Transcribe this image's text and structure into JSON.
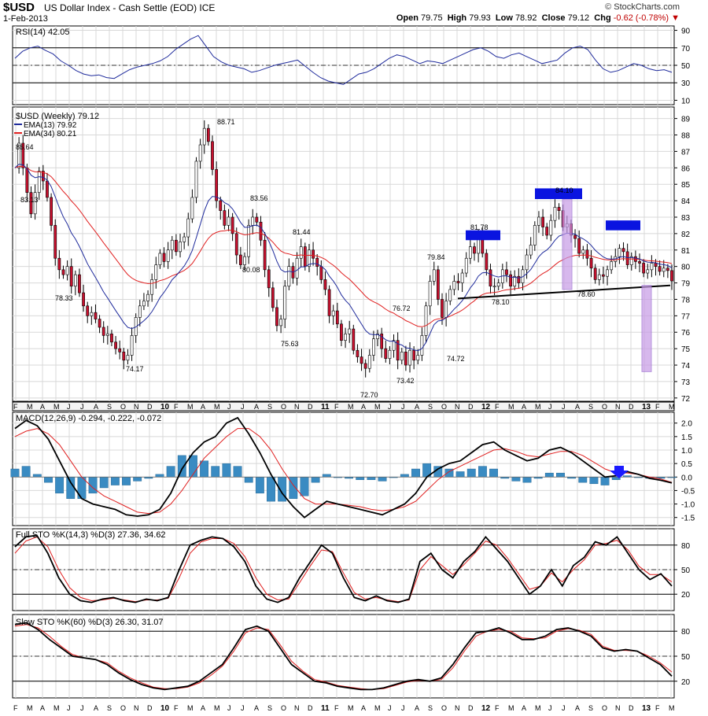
{
  "header": {
    "ticker": "$USD",
    "name": "US Dollar Index - Cash Settle (EOD)",
    "exchange": "ICE",
    "date": "1-Feb-2013",
    "brand": "© StockCharts.com",
    "open_label": "Open",
    "open": "79.75",
    "high_label": "High",
    "high": "79.93",
    "low_label": "Low",
    "low": "78.92",
    "close_label": "Close",
    "close": "79.12",
    "chg_label": "Chg",
    "chg": "-0.62 (-0.78%)",
    "down_arrow": "▼"
  },
  "colors": {
    "up_candle": "#ffffff",
    "down_candle": "#c8102e",
    "ema13": "#1f2b9c",
    "ema34": "#e01f1f",
    "macd": "#000000",
    "signal": "#e01f1f",
    "hist": "#3a8bc2",
    "box": "#0a14e0",
    "band": "#c79be6"
  },
  "chart_data": [
    {
      "type": "line",
      "title": "RSI(14) 42.05",
      "series": [
        {
          "name": "RSI(14)",
          "values": [
            58,
            66,
            70,
            72,
            67,
            63,
            55,
            50,
            44,
            40,
            38,
            39,
            36,
            35,
            40,
            45,
            48,
            50,
            52,
            55,
            60,
            68,
            74,
            80,
            84,
            72,
            60,
            54,
            50,
            48,
            46,
            42,
            44,
            47,
            50,
            52,
            54,
            56,
            49,
            42,
            36,
            32,
            30,
            28,
            34,
            40,
            42,
            46,
            52,
            58,
            62,
            60,
            56,
            52,
            55,
            54,
            52,
            56,
            60,
            64,
            68,
            70,
            66,
            60,
            58,
            62,
            64,
            60,
            56,
            52,
            54,
            56,
            64,
            70,
            72,
            68,
            56,
            46,
            42,
            44,
            48,
            52,
            50,
            46,
            44,
            45,
            42
          ]
        }
      ],
      "yticks": [
        10,
        30,
        50,
        70,
        90
      ],
      "ylim": [
        5,
        95
      ]
    },
    {
      "type": "candlestick",
      "title": "$USD (Weekly) 79.12",
      "legend": [
        "EMA(13) 79.92",
        "EMA(34) 80.21"
      ],
      "x_labels": [
        "F",
        "M",
        "A",
        "M",
        "J",
        "J",
        "A",
        "S",
        "O",
        "N",
        "D",
        "10",
        "F",
        "M",
        "A",
        "M",
        "J",
        "J",
        "A",
        "S",
        "O",
        "N",
        "D",
        "11",
        "F",
        "M",
        "A",
        "M",
        "J",
        "J",
        "A",
        "S",
        "O",
        "N",
        "D",
        "12",
        "F",
        "M",
        "A",
        "M",
        "J",
        "J",
        "A",
        "S",
        "O",
        "N",
        "D",
        "13",
        "F",
        "M"
      ],
      "close": [
        86.0,
        87.5,
        86.0,
        84.5,
        83.2,
        84.5,
        85.8,
        85.2,
        84.2,
        82.5,
        80.5,
        79.8,
        79.5,
        80.0,
        78.8,
        79.5,
        78.4,
        77.6,
        77.0,
        77.2,
        76.8,
        76.3,
        75.8,
        75.9,
        75.4,
        75.0,
        74.8,
        74.3,
        74.6,
        75.8,
        76.9,
        77.6,
        77.9,
        78.3,
        79.2,
        80.1,
        80.8,
        80.3,
        81.0,
        81.6,
        80.9,
        81.5,
        81.8,
        82.9,
        84.2,
        86.4,
        87.4,
        88.4,
        87.6,
        85.9,
        84.0,
        83.4,
        82.5,
        83.0,
        82.0,
        80.7,
        80.1,
        80.6,
        82.5,
        83.0,
        82.7,
        81.6,
        79.8,
        78.7,
        77.5,
        76.4,
        76.8,
        78.8,
        80.0,
        79.3,
        80.5,
        81.2,
        80.0,
        81.0,
        80.5,
        80.0,
        79.2,
        78.6,
        77.0,
        77.3,
        76.5,
        75.5,
        75.9,
        76.2,
        74.9,
        74.5,
        74.1,
        73.8,
        74.6,
        75.6,
        75.9,
        75.0,
        74.4,
        74.9,
        75.5,
        74.3,
        74.8,
        74.0,
        74.9,
        74.3,
        74.6,
        75.8,
        77.6,
        79.1,
        79.8,
        78.0,
        76.9,
        77.9,
        78.6,
        79.1,
        79.0,
        79.6,
        80.5,
        81.2,
        80.8,
        81.9,
        80.8,
        79.8,
        78.8,
        78.8,
        79.0,
        79.8,
        79.5,
        78.8,
        79.4,
        79.0,
        79.8,
        80.7,
        81.3,
        82.5,
        83.0,
        82.4,
        81.9,
        82.8,
        83.6,
        83.4,
        82.4,
        82.6,
        81.9,
        81.7,
        80.8,
        81.0,
        80.5,
        79.9,
        79.2,
        79.5,
        79.4,
        79.8,
        80.3,
        80.6,
        81.1,
        80.9,
        80.1,
        80.6,
        80.3,
        80.2,
        79.6,
        79.8,
        80.2,
        80.0,
        79.7,
        79.9,
        79.75,
        79.12
      ],
      "labels": [
        {
          "text": "86.64",
          "value": 86.64
        },
        {
          "text": "83.13",
          "value": 83.13
        },
        {
          "text": "78.33",
          "value": 78.33
        },
        {
          "text": "74.17",
          "value": 74.17
        },
        {
          "text": "88.71",
          "value": 88.71
        },
        {
          "text": "83.56",
          "value": 83.56
        },
        {
          "text": "80.08",
          "value": 80.08
        },
        {
          "text": "81.44",
          "value": 81.44
        },
        {
          "text": "75.63",
          "value": 75.63
        },
        {
          "text": "72.70",
          "value": 72.7
        },
        {
          "text": "76.72",
          "value": 76.72
        },
        {
          "text": "73.42",
          "value": 73.42
        },
        {
          "text": "79.84",
          "value": 79.84
        },
        {
          "text": "74.72",
          "value": 74.72
        },
        {
          "text": "81.78",
          "value": 81.78
        },
        {
          "text": "78.10",
          "value": 78.1
        },
        {
          "text": "84.10",
          "value": 84.1
        },
        {
          "text": "78.60",
          "value": 78.6
        }
      ],
      "yticks": [
        72,
        73,
        74,
        75,
        76,
        77,
        78,
        79,
        80,
        81,
        82,
        83,
        84,
        85,
        86,
        87,
        88,
        89
      ],
      "ylim": [
        71.8,
        89.7
      ]
    },
    {
      "type": "line",
      "title": "MACD(12,26,9) -0.294, -0.222, -0.072",
      "series": [
        {
          "name": "MACD(12,26,9)",
          "values": [
            1.8,
            2.1,
            1.9,
            1.4,
            0.6,
            -0.2,
            -0.8,
            -1.0,
            -1.1,
            -1.2,
            -1.4,
            -1.45,
            -1.4,
            -1.2,
            -0.6,
            0.3,
            0.9,
            1.3,
            1.5,
            2.0,
            2.2,
            1.6,
            0.9,
            0.1,
            -0.6,
            -1.1,
            -1.5,
            -1.2,
            -0.9,
            -1.0,
            -1.1,
            -1.2,
            -1.3,
            -1.4,
            -1.2,
            -1.0,
            -0.6,
            0.0,
            0.3,
            0.5,
            0.6,
            0.9,
            1.2,
            1.3,
            1.0,
            0.8,
            0.6,
            0.7,
            1.0,
            1.1,
            0.9,
            0.6,
            0.3,
            0.0,
            0.05,
            0.2,
            0.1,
            -0.05,
            -0.12,
            -0.22
          ]
        },
        {
          "name": "signal",
          "values": [
            1.5,
            1.7,
            1.8,
            1.6,
            1.2,
            0.6,
            0.0,
            -0.4,
            -0.7,
            -0.9,
            -1.1,
            -1.3,
            -1.35,
            -1.3,
            -1.0,
            -0.5,
            0.1,
            0.7,
            1.1,
            1.5,
            1.8,
            1.8,
            1.5,
            1.0,
            0.3,
            -0.3,
            -0.8,
            -1.0,
            -1.0,
            -1.0,
            -1.05,
            -1.1,
            -1.2,
            -1.25,
            -1.2,
            -1.1,
            -0.9,
            -0.5,
            -0.1,
            0.2,
            0.4,
            0.6,
            0.8,
            1.0,
            1.05,
            0.95,
            0.8,
            0.75,
            0.85,
            0.95,
            0.95,
            0.8,
            0.55,
            0.3,
            0.15,
            0.15,
            0.1,
            0.0,
            -0.07,
            -0.2
          ]
        },
        {
          "name": "histogram",
          "values": [
            0.3,
            0.4,
            0.1,
            -0.2,
            -0.6,
            -0.8,
            -0.8,
            -0.6,
            -0.4,
            -0.3,
            -0.3,
            -0.15,
            -0.05,
            0.1,
            0.4,
            0.8,
            0.8,
            0.6,
            0.4,
            0.5,
            0.4,
            -0.2,
            -0.6,
            -0.9,
            -0.9,
            -0.8,
            -0.7,
            -0.2,
            0.1,
            0.0,
            -0.05,
            -0.1,
            -0.1,
            -0.15,
            0.0,
            0.1,
            0.3,
            0.5,
            0.4,
            0.3,
            0.2,
            0.3,
            0.4,
            0.3,
            -0.05,
            -0.15,
            -0.2,
            -0.05,
            0.15,
            0.15,
            -0.05,
            -0.2,
            -0.25,
            -0.3,
            -0.1,
            0.05,
            0.0,
            -0.05,
            -0.05,
            -0.02
          ]
        }
      ],
      "yticks": [
        2.0,
        1.5,
        1.0,
        0.5,
        0.0,
        -0.5,
        -1.0,
        -1.5
      ],
      "ylim": [
        -1.8,
        2.4
      ]
    },
    {
      "type": "line",
      "title": "Full STO %K(14,3) %D(3) 27.36, 34.62",
      "series": [
        {
          "name": "%K(14,3)",
          "values": [
            78,
            90,
            92,
            70,
            40,
            20,
            12,
            10,
            14,
            16,
            12,
            10,
            14,
            12,
            16,
            50,
            80,
            86,
            90,
            88,
            78,
            60,
            30,
            14,
            10,
            16,
            40,
            60,
            80,
            70,
            40,
            16,
            12,
            18,
            12,
            10,
            14,
            60,
            70,
            50,
            40,
            60,
            72,
            90,
            75,
            60,
            40,
            20,
            30,
            50,
            30,
            55,
            65,
            84,
            80,
            90,
            70,
            50,
            38,
            45,
            30
          ]
        },
        {
          "name": "%D(3)",
          "values": [
            70,
            85,
            90,
            78,
            50,
            28,
            16,
            12,
            13,
            15,
            13,
            11,
            13,
            13,
            15,
            40,
            70,
            84,
            88,
            88,
            82,
            66,
            40,
            20,
            13,
            14,
            34,
            55,
            74,
            72,
            46,
            22,
            14,
            16,
            13,
            11,
            13,
            50,
            66,
            55,
            44,
            56,
            70,
            85,
            80,
            64,
            45,
            26,
            30,
            46,
            35,
            50,
            62,
            80,
            82,
            86,
            74,
            54,
            44,
            44,
            35
          ]
        }
      ],
      "yticks": [
        20,
        50,
        80
      ],
      "ylim": [
        0,
        100
      ]
    },
    {
      "type": "line",
      "title": "Slow STO %K(60) %D(3) 26.30, 31.07",
      "series": [
        {
          "name": "%K(60)",
          "values": [
            88,
            90,
            82,
            70,
            60,
            50,
            48,
            46,
            40,
            30,
            22,
            16,
            12,
            10,
            12,
            14,
            20,
            30,
            40,
            60,
            82,
            86,
            80,
            60,
            40,
            30,
            20,
            18,
            14,
            12,
            10,
            10,
            12,
            16,
            20,
            22,
            20,
            24,
            40,
            60,
            78,
            80,
            84,
            78,
            70,
            70,
            74,
            82,
            84,
            80,
            74,
            60,
            56,
            58,
            56,
            48,
            40,
            26
          ]
        },
        {
          "name": "%D(3)",
          "values": [
            86,
            88,
            84,
            74,
            62,
            52,
            48,
            46,
            42,
            32,
            24,
            18,
            13,
            11,
            11,
            13,
            18,
            27,
            38,
            56,
            78,
            84,
            82,
            64,
            44,
            32,
            22,
            19,
            15,
            13,
            11,
            10,
            11,
            15,
            19,
            21,
            20,
            22,
            36,
            56,
            74,
            80,
            82,
            80,
            72,
            71,
            72,
            80,
            83,
            81,
            76,
            62,
            57,
            57,
            56,
            50,
            42,
            31
          ]
        }
      ],
      "yticks": [
        20,
        50,
        80
      ],
      "ylim": [
        0,
        100
      ]
    }
  ]
}
